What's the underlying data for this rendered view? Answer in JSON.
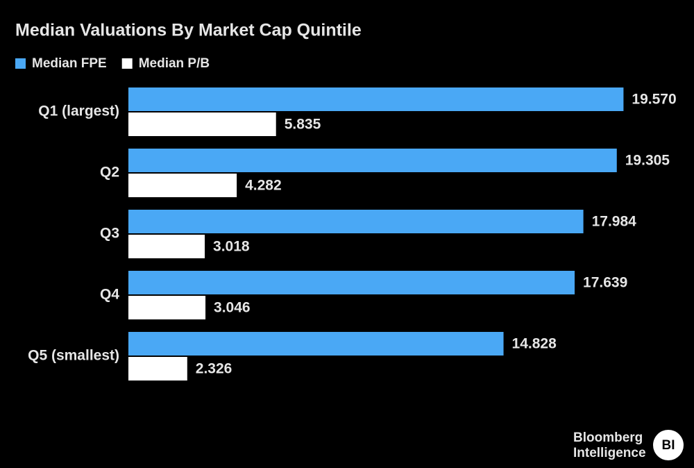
{
  "chart_data": {
    "type": "hbar",
    "title": "Median Valuations By Market Cap Quintile",
    "categories": [
      "Q1 (largest)",
      "Q2",
      "Q3",
      "Q4",
      "Q5 (smallest)"
    ],
    "series": [
      {
        "name": "Median FPE",
        "color": "#4aa8f5",
        "values": [
          19.57,
          19.305,
          17.984,
          17.639,
          14.828
        ],
        "value_labels": [
          "19.570",
          "19.305",
          "17.984",
          "17.639",
          "14.828"
        ]
      },
      {
        "name": "Median P/B",
        "color": "#ffffff",
        "values": [
          5.835,
          4.282,
          3.018,
          3.046,
          2.326
        ],
        "value_labels": [
          "5.835",
          "4.282",
          "3.018",
          "3.046",
          "2.326"
        ]
      }
    ],
    "xlim": [
      0,
      22
    ],
    "legend": "top-left"
  },
  "footer": {
    "brand": "Bloomberg",
    "brand_line2": "Intelligence",
    "logo": "BI"
  }
}
